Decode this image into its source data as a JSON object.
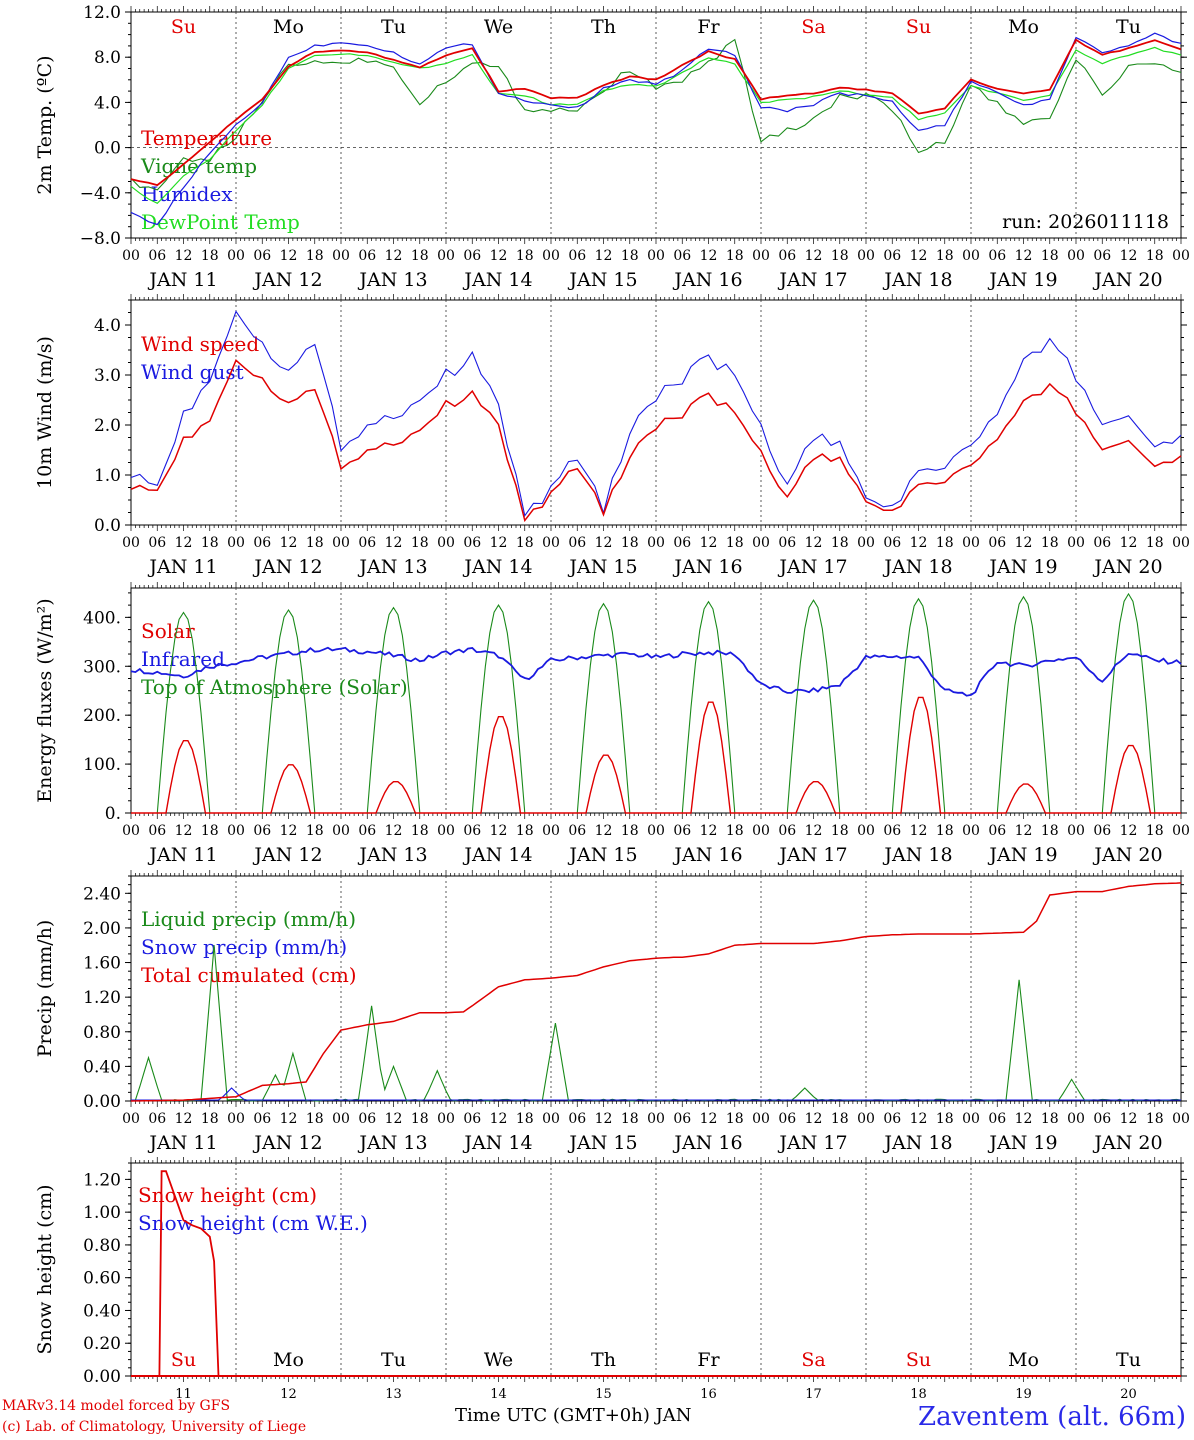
{
  "panels": [
    {
      "id": "temp",
      "ylabel_html": "2m Temp. (ºC)",
      "ylim": [
        -8,
        12
      ],
      "yticks": [
        -8,
        -4,
        0,
        4,
        8,
        12
      ],
      "ytick_labels": [
        "−8.0",
        "−4.0",
        "0.0",
        "4.0",
        "8.0",
        "12.0"
      ],
      "zero_line": 0,
      "legend": [
        {
          "label": "Temperature",
          "color": "#e00000"
        },
        {
          "label": "Vigne temp",
          "color": "#1a8a1a"
        },
        {
          "label": "Humidex",
          "color": "#1a1ae0"
        },
        {
          "label": "DewPoint Temp",
          "color": "#22dd22"
        }
      ],
      "run": "run: 2026011118"
    },
    {
      "id": "wind",
      "ylabel_html": "10m Wind (m/s)",
      "ylim": [
        0,
        4.5
      ],
      "yticks": [
        0,
        1,
        2,
        3,
        4
      ],
      "ytick_labels": [
        "0.0",
        "1.0",
        "2.0",
        "3.0",
        "4.0"
      ],
      "legend": [
        {
          "label": "Wind speed",
          "color": "#e00000"
        },
        {
          "label": "Wind gust",
          "color": "#1a1ae0"
        }
      ]
    },
    {
      "id": "flux",
      "ylabel_html": "Energy fluxes (W/m²)",
      "ylim": [
        0,
        460
      ],
      "yticks": [
        0,
        100,
        200,
        300,
        400
      ],
      "ytick_labels": [
        "0.",
        "100.",
        "200.",
        "300.",
        "400."
      ],
      "legend": [
        {
          "label": "Solar",
          "color": "#e00000"
        },
        {
          "label": "Infrared",
          "color": "#1a1ae0"
        },
        {
          "label": "Top of Atmosphere (Solar)",
          "color": "#1a8a1a"
        }
      ]
    },
    {
      "id": "precip",
      "ylabel_html": "Precip (mm/h)",
      "ylim": [
        0,
        2.6
      ],
      "yticks": [
        0,
        0.4,
        0.8,
        1.2,
        1.6,
        2.0,
        2.4
      ],
      "ytick_labels": [
        "0.00",
        "0.40",
        "0.80",
        "1.20",
        "1.60",
        "2.00",
        "2.40"
      ],
      "legend": [
        {
          "label": "Liquid precip (mm/h)",
          "color": "#1a8a1a"
        },
        {
          "label": "Snow precip (mm/h)",
          "color": "#1a1ae0"
        },
        {
          "label": "Total cumulated (cm)",
          "color": "#e00000"
        }
      ]
    },
    {
      "id": "snow",
      "ylabel_html": "Snow height (cm)",
      "ylim": [
        0,
        1.3
      ],
      "yticks": [
        0,
        0.2,
        0.4,
        0.6,
        0.8,
        1.0,
        1.2
      ],
      "ytick_labels": [
        "0.00",
        "0.20",
        "0.40",
        "0.60",
        "0.80",
        "1.00",
        "1.20"
      ],
      "legend": [
        {
          "label": "Snow height (cm)",
          "color": "#e00000"
        },
        {
          "label": "Snow height (cm W.E.)",
          "color": "#1a1ae0"
        }
      ]
    }
  ],
  "hour_labels": [
    "00",
    "06",
    "12",
    "18"
  ],
  "end_hour_label": "00",
  "date_labels": [
    "JAN 11",
    "JAN 12",
    "JAN 13",
    "JAN 14",
    "JAN 15",
    "JAN 16",
    "JAN 17",
    "JAN 18",
    "JAN 19",
    "JAN 20"
  ],
  "days": [
    {
      "abbr": "Su",
      "weekend": true
    },
    {
      "abbr": "Mo",
      "weekend": false
    },
    {
      "abbr": "Tu",
      "weekend": false
    },
    {
      "abbr": "We",
      "weekend": false
    },
    {
      "abbr": "Th",
      "weekend": false
    },
    {
      "abbr": "Fr",
      "weekend": false
    },
    {
      "abbr": "Sa",
      "weekend": true
    },
    {
      "abbr": "Su",
      "weekend": true
    },
    {
      "abbr": "Mo",
      "weekend": false
    },
    {
      "abbr": "Tu",
      "weekend": false
    }
  ],
  "bottom_day_numbers": [
    "11",
    "12",
    "13",
    "14",
    "15",
    "16",
    "17",
    "18",
    "19",
    "20"
  ],
  "colors": {
    "weekend": "#e00000",
    "weekday": "#000000"
  },
  "chart_data": {
    "type": "line",
    "x_unit": "hours since 2026-01-11 00 UTC",
    "x_range": [
      0,
      240
    ],
    "temperature": {
      "x": [
        0,
        6,
        12,
        18,
        24,
        30,
        36,
        42,
        48,
        54,
        60,
        66,
        72,
        78,
        84,
        90,
        96,
        102,
        108,
        114,
        120,
        126,
        132,
        138,
        144,
        150,
        156,
        162,
        168,
        174,
        180,
        186,
        192,
        198,
        204,
        210,
        216,
        222,
        228,
        234,
        240
      ],
      "y": [
        -2.8,
        -3.3,
        -1.5,
        0.5,
        2.5,
        4.3,
        7.2,
        8.5,
        8.6,
        8.4,
        7.8,
        7.1,
        8.2,
        8.8,
        5.0,
        5.2,
        4.4,
        4.4,
        5.5,
        6.3,
        6.0,
        7.3,
        8.5,
        7.8,
        4.3,
        4.6,
        4.8,
        5.3,
        5.1,
        4.8,
        3.0,
        3.5,
        6.0,
        5.2,
        4.8,
        5.1,
        9.5,
        8.2,
        8.8,
        9.5,
        8.7
      ]
    },
    "vigne_temp": {
      "x": [
        0,
        6,
        12,
        18,
        24,
        30,
        36,
        42,
        48,
        54,
        60,
        66,
        72,
        78,
        84,
        90,
        96,
        102,
        108,
        114,
        120,
        126,
        132,
        138,
        144,
        150,
        156,
        162,
        168,
        174,
        180,
        186,
        192,
        198,
        204,
        210,
        216,
        222,
        228,
        234,
        240
      ],
      "y": [
        -3.0,
        -4.0,
        -1.0,
        -1.0,
        1.0,
        4.0,
        7.5,
        7.5,
        7.6,
        7.8,
        7.2,
        4.0,
        6.0,
        7.5,
        7.0,
        3.5,
        3.3,
        3.5,
        5.0,
        7.0,
        5.2,
        6.0,
        7.5,
        9.5,
        0.5,
        1.5,
        2.5,
        4.5,
        4.5,
        3.5,
        -0.5,
        0.5,
        5.5,
        3.8,
        2.0,
        2.5,
        8.0,
        4.5,
        7.2,
        7.5,
        6.5
      ]
    },
    "humidex": {
      "x": [
        0,
        6,
        12,
        18,
        24,
        30,
        36,
        42,
        48,
        54,
        60,
        66,
        72,
        78,
        84,
        90,
        96,
        102,
        108,
        114,
        120,
        126,
        132,
        138,
        144,
        150,
        156,
        162,
        168,
        174,
        180,
        186,
        192,
        198,
        204,
        210,
        216,
        222,
        228,
        234,
        240
      ],
      "y": [
        -5.8,
        -6.8,
        -3.5,
        -0.5,
        2.0,
        4.0,
        8.0,
        9.0,
        9.3,
        9.1,
        8.4,
        7.4,
        8.8,
        9.2,
        4.8,
        4.2,
        3.8,
        3.5,
        5.2,
        6.0,
        5.6,
        6.8,
        8.8,
        8.2,
        3.6,
        3.3,
        3.8,
        4.8,
        4.6,
        4.0,
        1.5,
        2.0,
        5.8,
        4.8,
        3.8,
        4.2,
        9.8,
        8.4,
        9.0,
        10.0,
        9.2
      ]
    },
    "dewpoint": {
      "x": [
        0,
        6,
        12,
        18,
        24,
        30,
        36,
        42,
        48,
        54,
        60,
        66,
        72,
        78,
        84,
        90,
        96,
        102,
        108,
        114,
        120,
        126,
        132,
        138,
        144,
        150,
        156,
        162,
        168,
        174,
        180,
        186,
        192,
        198,
        204,
        210,
        216,
        222,
        228,
        234,
        240
      ],
      "y": [
        -3.5,
        -5.0,
        -2.5,
        -1.0,
        1.5,
        3.8,
        7.0,
        8.2,
        8.3,
        8.2,
        7.5,
        7.0,
        7.5,
        8.2,
        4.8,
        4.6,
        3.8,
        3.8,
        5.0,
        5.6,
        5.4,
        6.6,
        8.0,
        7.4,
        4.0,
        4.2,
        4.5,
        5.0,
        4.7,
        4.4,
        2.5,
        3.0,
        5.5,
        4.8,
        4.2,
        4.6,
        8.6,
        7.4,
        8.2,
        8.8,
        8.2
      ]
    },
    "wind_speed": {
      "x": [
        0,
        6,
        12,
        18,
        24,
        30,
        36,
        42,
        48,
        54,
        60,
        66,
        72,
        78,
        84,
        90,
        96,
        102,
        108,
        114,
        120,
        126,
        132,
        138,
        144,
        150,
        156,
        162,
        168,
        174,
        180,
        186,
        192,
        198,
        204,
        210,
        216,
        222,
        228,
        234,
        240
      ],
      "y": [
        0.75,
        0.7,
        1.7,
        2.1,
        3.35,
        2.9,
        2.45,
        2.7,
        1.2,
        1.5,
        1.65,
        1.9,
        2.4,
        2.6,
        2.0,
        0.1,
        0.6,
        1.2,
        0.25,
        1.4,
        2.0,
        2.2,
        2.6,
        2.25,
        1.4,
        0.55,
        1.35,
        1.3,
        0.4,
        0.3,
        0.75,
        0.9,
        1.2,
        1.7,
        2.4,
        2.8,
        2.3,
        1.5,
        1.7,
        1.2,
        1.35
      ]
    },
    "wind_gust": {
      "x": [
        0,
        6,
        12,
        18,
        24,
        30,
        36,
        42,
        48,
        54,
        60,
        66,
        72,
        78,
        84,
        90,
        96,
        102,
        108,
        114,
        120,
        126,
        132,
        138,
        144,
        150,
        156,
        162,
        168,
        174,
        180,
        186,
        192,
        198,
        204,
        210,
        216,
        222,
        228,
        234,
        240
      ],
      "y": [
        1.0,
        0.8,
        2.2,
        2.9,
        4.35,
        3.6,
        3.1,
        3.6,
        1.6,
        2.0,
        2.2,
        2.5,
        3.0,
        3.35,
        2.4,
        0.2,
        0.7,
        1.4,
        0.3,
        1.9,
        2.6,
        2.9,
        3.35,
        3.0,
        1.9,
        0.8,
        1.75,
        1.6,
        0.45,
        0.4,
        1.0,
        1.2,
        1.6,
        2.2,
        3.2,
        3.7,
        3.0,
        2.0,
        2.2,
        1.6,
        1.75
      ]
    },
    "solar_peaks": [
      150,
      100,
      65,
      200,
      120,
      230,
      65,
      240,
      60,
      140
    ],
    "toa_peaks": [
      410,
      415,
      420,
      425,
      428,
      432,
      435,
      438,
      442,
      448
    ],
    "infrared": {
      "x": [
        0,
        6,
        12,
        18,
        24,
        30,
        36,
        42,
        48,
        54,
        60,
        66,
        72,
        78,
        84,
        90,
        96,
        102,
        108,
        114,
        120,
        126,
        132,
        138,
        144,
        150,
        156,
        162,
        168,
        174,
        180,
        186,
        192,
        198,
        204,
        210,
        216,
        222,
        228,
        234,
        240
      ],
      "y": [
        293,
        288,
        280,
        300,
        308,
        318,
        326,
        334,
        334,
        330,
        322,
        312,
        328,
        334,
        322,
        272,
        312,
        318,
        322,
        325,
        318,
        325,
        328,
        325,
        262,
        248,
        250,
        262,
        318,
        320,
        318,
        250,
        240,
        310,
        300,
        312,
        318,
        270,
        328,
        312,
        308
      ]
    },
    "precip_cum": {
      "x": [
        0,
        12,
        24,
        30,
        36,
        40,
        44,
        48,
        54,
        60,
        66,
        72,
        76,
        78,
        84,
        90,
        96,
        102,
        108,
        114,
        120,
        124,
        126,
        132,
        138,
        144,
        150,
        156,
        162,
        168,
        174,
        180,
        186,
        192,
        198,
        204,
        207,
        210,
        216,
        222,
        228,
        234,
        240
      ],
      "y": [
        0.0,
        0.01,
        0.05,
        0.18,
        0.2,
        0.22,
        0.55,
        0.82,
        0.88,
        0.92,
        1.02,
        1.02,
        1.03,
        1.1,
        1.32,
        1.4,
        1.42,
        1.45,
        1.55,
        1.62,
        1.65,
        1.66,
        1.66,
        1.7,
        1.8,
        1.82,
        1.82,
        1.82,
        1.85,
        1.9,
        1.92,
        1.93,
        1.93,
        1.93,
        1.94,
        1.95,
        2.08,
        2.38,
        2.42,
        2.42,
        2.48,
        2.51,
        2.52
      ]
    },
    "liquid_spikes": [
      [
        4,
        0.5
      ],
      [
        19,
        1.8
      ],
      [
        33,
        0.3
      ],
      [
        37,
        0.55
      ],
      [
        55,
        1.1
      ],
      [
        60,
        0.4
      ],
      [
        70,
        0.35
      ],
      [
        97,
        0.9
      ],
      [
        154,
        0.15
      ],
      [
        203,
        1.4
      ],
      [
        215,
        0.25
      ]
    ],
    "snow_height": {
      "x": [
        0,
        6.5,
        7,
        8,
        10,
        12,
        14,
        16,
        18,
        19,
        20,
        20.5,
        240
      ],
      "y": [
        0,
        0,
        1.25,
        1.25,
        1.1,
        0.95,
        0.92,
        0.9,
        0.85,
        0.7,
        0.0,
        0,
        0
      ]
    }
  },
  "footer": {
    "model_line": "MARv3.14 model forced by GFS",
    "credit_line": "(c) Lab. of Climatology, University of Liege",
    "time_label": "Time UTC (GMT+0h) JAN",
    "station": "Zaventem (alt. 66m)"
  }
}
